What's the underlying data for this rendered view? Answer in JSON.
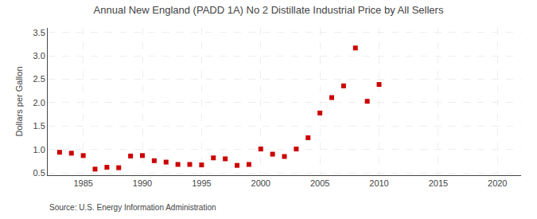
{
  "chart_data": {
    "type": "scatter",
    "title": "Annual New England (PADD 1A) No 2 Distillate Industrial Price by All Sellers",
    "ylabel": "Dollars per Gallon",
    "annotation": "Source: U.S. Energy Information Administration",
    "x": [
      1983,
      1984,
      1985,
      1986,
      1987,
      1988,
      1989,
      1990,
      1991,
      1992,
      1993,
      1994,
      1995,
      1996,
      1997,
      1998,
      1999,
      2000,
      2001,
      2002,
      2003,
      2004,
      2005,
      2006,
      2007,
      2008,
      2009,
      2010
    ],
    "values": [
      0.94,
      0.92,
      0.87,
      0.58,
      0.62,
      0.61,
      0.86,
      0.87,
      0.76,
      0.73,
      0.68,
      0.68,
      0.67,
      0.82,
      0.8,
      0.66,
      0.68,
      1.01,
      0.9,
      0.85,
      1.01,
      1.25,
      1.78,
      2.11,
      2.36,
      3.17,
      2.03,
      2.39
    ],
    "color": "#cc0000",
    "marker": "square",
    "xlim": [
      1982,
      2022
    ],
    "ylim": [
      0.45,
      3.6
    ],
    "xticks": [
      1985,
      1990,
      1995,
      2000,
      2005,
      2010,
      2015,
      2020
    ],
    "yticks": [
      0.5,
      {
        "value": 1.0,
        "label": "1.0"
      },
      1.5,
      {
        "value": 2.0,
        "label": "2.0"
      },
      2.5,
      {
        "value": 3.0,
        "label": "3.0"
      },
      3.5
    ],
    "grid": true
  }
}
